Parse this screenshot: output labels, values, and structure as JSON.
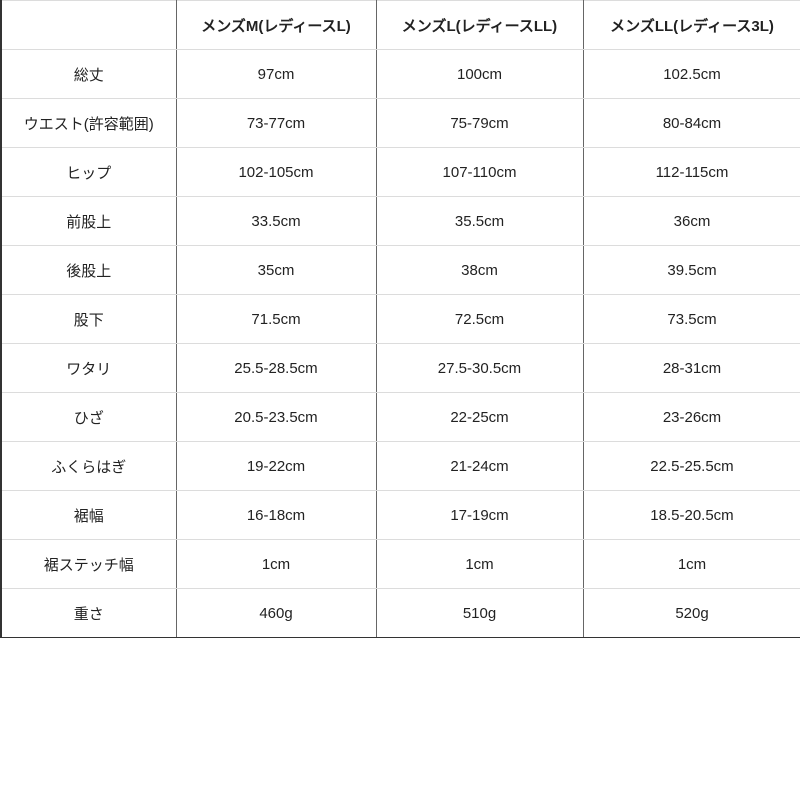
{
  "table": {
    "headers": [
      "",
      "メンズM(レディースL)",
      "メンズL(レディースLL)",
      "メンズLL(レディース3L)"
    ],
    "rows": [
      {
        "label": "総丈",
        "values": [
          "97cm",
          "100cm",
          "102.5cm"
        ]
      },
      {
        "label": "ウエスト(許容範囲)",
        "values": [
          "73-77cm",
          "75-79cm",
          "80-84cm"
        ]
      },
      {
        "label": "ヒップ",
        "values": [
          "102-105cm",
          "107-110cm",
          "112-115cm"
        ]
      },
      {
        "label": "前股上",
        "values": [
          "33.5cm",
          "35.5cm",
          "36cm"
        ]
      },
      {
        "label": "後股上",
        "values": [
          "35cm",
          "38cm",
          "39.5cm"
        ]
      },
      {
        "label": "股下",
        "values": [
          "71.5cm",
          "72.5cm",
          "73.5cm"
        ]
      },
      {
        "label": "ワタリ",
        "values": [
          "25.5-28.5cm",
          "27.5-30.5cm",
          "28-31cm"
        ]
      },
      {
        "label": "ひざ",
        "values": [
          "20.5-23.5cm",
          "22-25cm",
          "23-26cm"
        ]
      },
      {
        "label": "ふくらはぎ",
        "values": [
          "19-22cm",
          "21-24cm",
          "22.5-25.5cm"
        ]
      },
      {
        "label": "裾幅",
        "values": [
          "16-18cm",
          "17-19cm",
          "18.5-20.5cm"
        ]
      },
      {
        "label": "裾ステッチ幅",
        "values": [
          "1cm",
          "1cm",
          "1cm"
        ]
      },
      {
        "label": "重さ",
        "values": [
          "460g",
          "510g",
          "520g"
        ]
      }
    ]
  }
}
